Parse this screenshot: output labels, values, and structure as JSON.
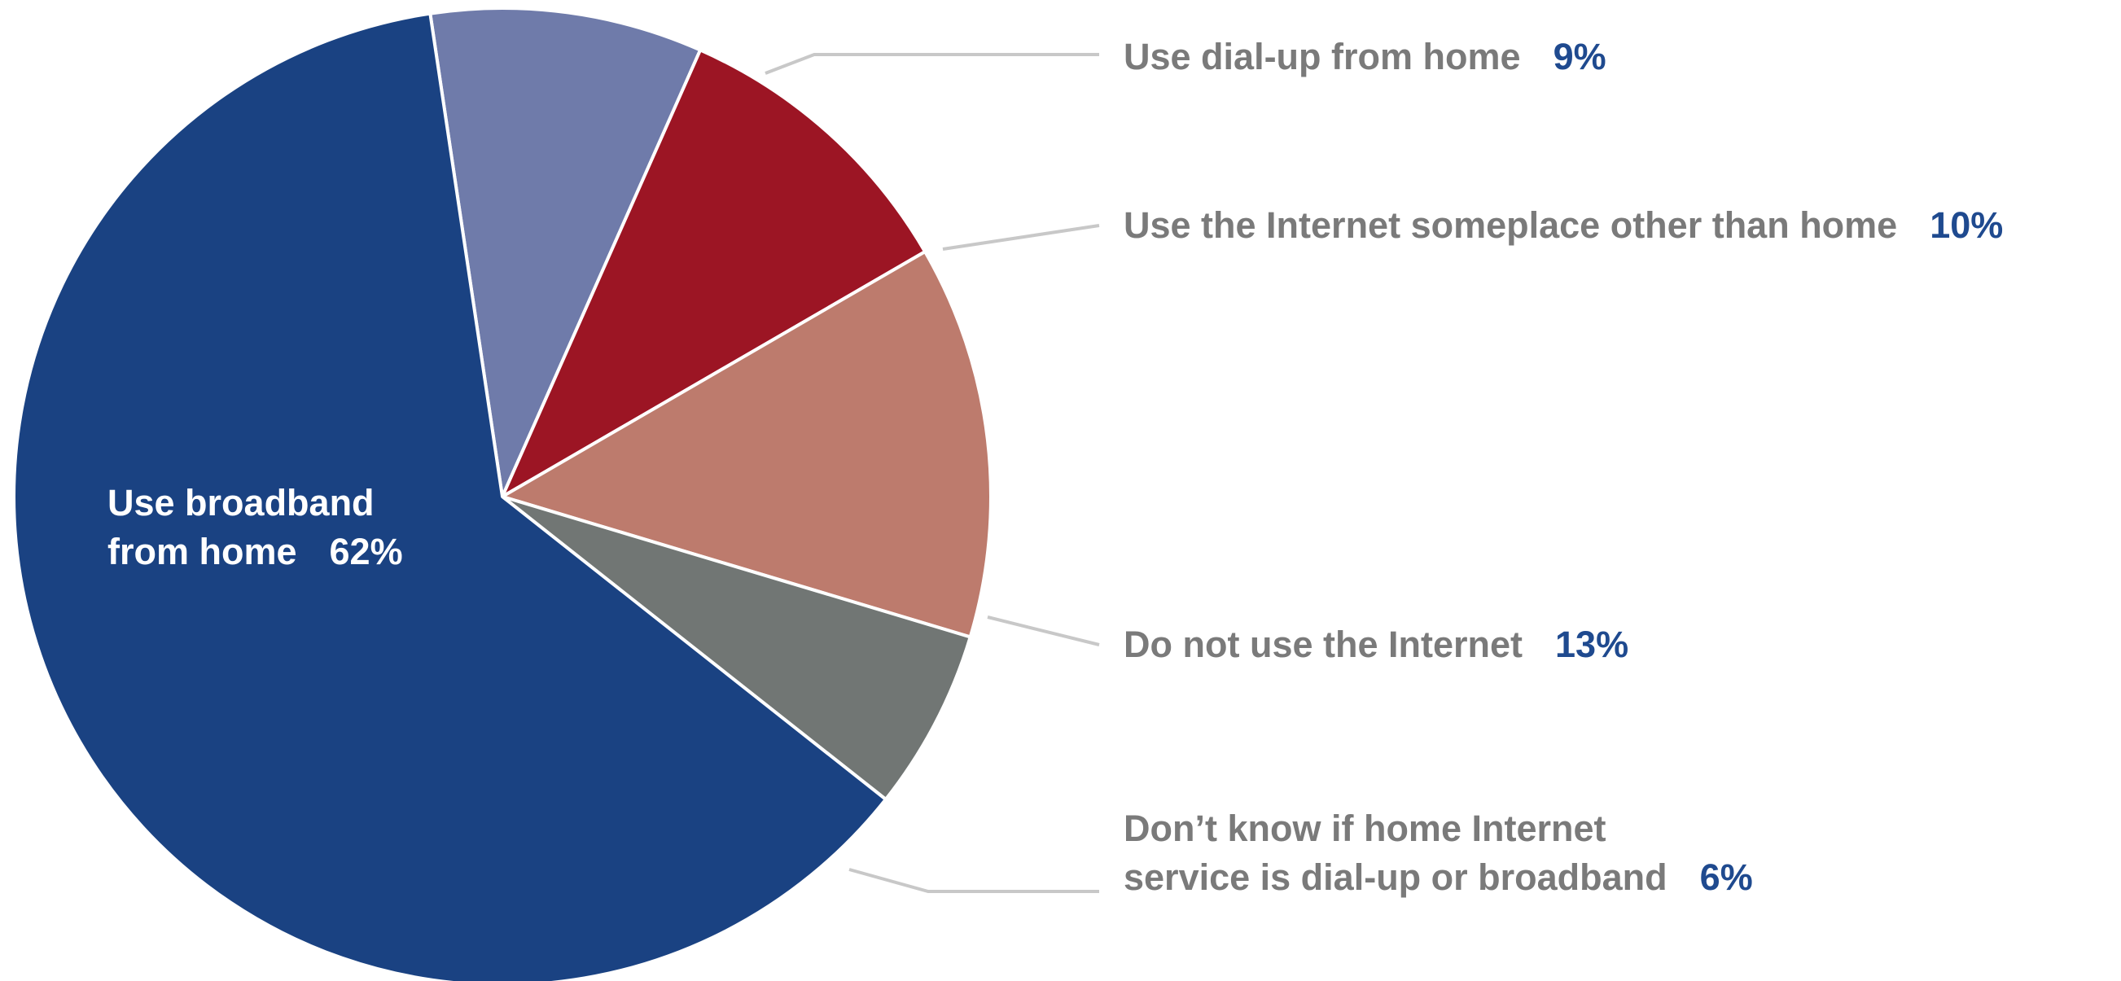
{
  "chart_data": {
    "type": "pie",
    "title": "",
    "start_angle_deg": -8.5,
    "direction": "clockwise",
    "slices": [
      {
        "label": "Use dial-up from home",
        "value_label": "9%",
        "value": 9,
        "color": "#6f7baa"
      },
      {
        "label": "Use the Internet someplace other than home",
        "value_label": "10%",
        "value": 10,
        "color": "#9c1524"
      },
      {
        "label": "Do not use the Internet",
        "value_label": "13%",
        "value": 13,
        "color": "#bd7b6d"
      },
      {
        "label_lines": [
          "Don’t know if home Internet",
          "service is dial-up or broadband"
        ],
        "value_label": "6%",
        "value": 6,
        "color": "#717674"
      },
      {
        "label_lines": [
          "Use broadband",
          "from home"
        ],
        "value_label": "62%",
        "value": 62,
        "color": "#1a4282"
      }
    ],
    "label_color": "#7a7a7a",
    "value_color": "#1f4a8f",
    "inside_label_color": "#ffffff",
    "leader_color": "#c8c8c8"
  }
}
